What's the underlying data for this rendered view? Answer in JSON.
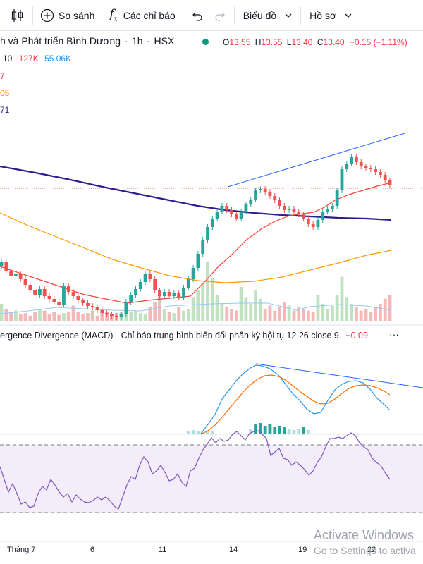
{
  "toolbar": {
    "compare_label": "So sánh",
    "indicators_label": "Các chỉ báo",
    "chart_type_label": "Biểu đồ",
    "template_label": "Hồ sơ"
  },
  "legend": {
    "symbol_name": "h và Phát triển Bình Dương",
    "sep1": "·",
    "interval": "1h",
    "sep2": "·",
    "exchange": "HSX",
    "o_label": "O",
    "o_value": "13.55",
    "h_label": "H",
    "h_value": "13.55",
    "l_label": "L",
    "l_value": "13.40",
    "c_label": "C",
    "c_value": "13.40",
    "change": "−0.15 (−1.11%)",
    "volume_prefix": "10",
    "volume": "127K",
    "volume_ma": "55.06K",
    "ma1_fragment": "7",
    "ma2_fragment": "05",
    "ma3_fragment": "71"
  },
  "macd_legend": {
    "title": "ergence Divergence (MACD) - Chỉ báo trung bình biến đổi phân kỳ hội tụ 12 26 close 9",
    "value": "−0.09"
  },
  "watermark": {
    "title": "Activate Windows",
    "subtitle": "Go to Settings to activa"
  },
  "colors": {
    "up": "#26a69a",
    "down": "#ef5350",
    "ma_fast": "#f44336",
    "ma_slow": "#ff9800",
    "ma_long": "#311b92",
    "trendline": "#2962ff",
    "macd": "#2196f3",
    "signal": "#ff6d00",
    "rsi": "#7e57c2",
    "rsi_band": "#ede7f6"
  },
  "chart_data": {
    "type": "candlestick",
    "interval": "1h",
    "x_ticks": [
      "Tháng 7",
      "6",
      "11",
      "14",
      "19",
      "22"
    ],
    "last_close": 13.4
  }
}
